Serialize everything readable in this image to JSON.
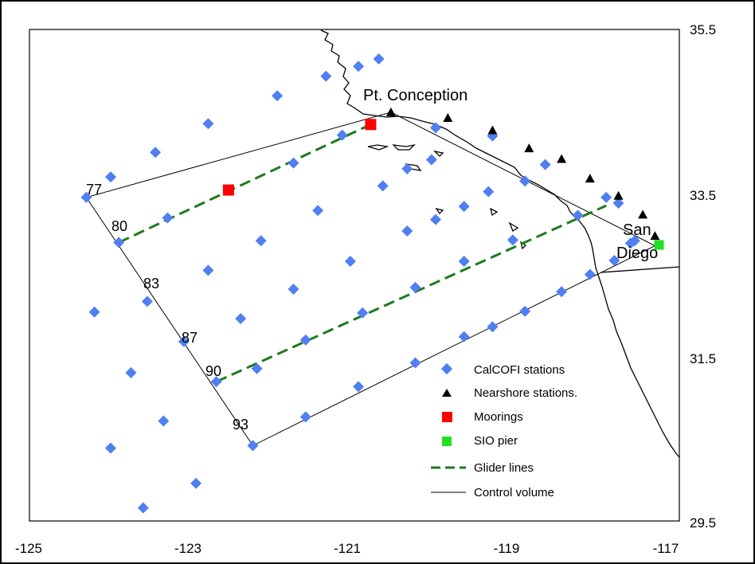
{
  "colors": {
    "calcofi": "#4f7ff0",
    "nearshore": "#000000",
    "mooring": "#ff0000",
    "pier": "#22e022",
    "glider": "#1f7a1f",
    "control": "#000000",
    "coast": "#000000"
  },
  "axes": {
    "x_ticks": [
      "-125",
      "-123",
      "-121",
      "-119",
      "-117"
    ],
    "y_ticks": [
      "35.5",
      "33.5",
      "31.5",
      "29.5"
    ]
  },
  "place_labels": {
    "pt_conception": "Pt. Conception",
    "san": "San",
    "diego": "Diego"
  },
  "line_labels": [
    "77",
    "80",
    "83",
    "87",
    "90",
    "93"
  ],
  "legend": {
    "calcofi": "CalCOFI stations",
    "nearshore": "Nearshore stations.",
    "moorings": "Moorings",
    "pier": "SIO pier",
    "glider": "Glider lines",
    "control": "Control volume"
  },
  "chart_data": {
    "type": "scatter",
    "xlim": [
      -125,
      -117
    ],
    "ylim": [
      29.5,
      35.5
    ],
    "control_volume": [
      [
        -124.3,
        33.45
      ],
      [
        -120.55,
        34.49
      ],
      [
        -117.3,
        32.86
      ],
      [
        -122.25,
        30.42
      ],
      [
        -124.3,
        33.45
      ]
    ],
    "glider_lines": [
      [
        [
          -123.9,
          32.9
        ],
        [
          -120.8,
          34.34
        ]
      ],
      [
        [
          -122.7,
          31.2
        ],
        [
          -117.9,
          33.35
        ]
      ]
    ],
    "moorings": [
      [
        -122.55,
        33.54
      ],
      [
        -120.8,
        34.34
      ]
    ],
    "sio_pier": [
      [
        -117.25,
        32.87
      ]
    ],
    "nearshore_stations": [
      [
        -120.55,
        34.49
      ],
      [
        -119.85,
        34.42
      ],
      [
        -119.3,
        34.27
      ],
      [
        -118.85,
        34.05
      ],
      [
        -118.45,
        33.92
      ],
      [
        -118.1,
        33.68
      ],
      [
        -117.75,
        33.47
      ],
      [
        -117.45,
        33.24
      ],
      [
        -117.3,
        32.98
      ]
    ],
    "calcofi_stations": [
      [
        -120.7,
        35.14
      ],
      [
        -120.95,
        35.05
      ],
      [
        -121.35,
        34.93
      ],
      [
        -121.95,
        34.69
      ],
      [
        -122.8,
        34.35
      ],
      [
        -123.45,
        34.0
      ],
      [
        -124.0,
        33.7
      ],
      [
        -124.3,
        33.45
      ],
      [
        -121.15,
        34.21
      ],
      [
        -121.75,
        33.87
      ],
      [
        -122.55,
        33.54
      ],
      [
        -123.3,
        33.2
      ],
      [
        -123.9,
        32.9
      ],
      [
        -120.0,
        34.3
      ],
      [
        -119.3,
        34.2
      ],
      [
        -118.65,
        33.85
      ],
      [
        -117.9,
        33.45
      ],
      [
        -117.55,
        32.92
      ],
      [
        -120.65,
        33.59
      ],
      [
        -120.35,
        33.8
      ],
      [
        -120.05,
        33.91
      ],
      [
        -119.35,
        33.52
      ],
      [
        -118.9,
        33.65
      ],
      [
        -119.65,
        33.34
      ],
      [
        -120.0,
        33.18
      ],
      [
        -120.35,
        33.04
      ],
      [
        -121.45,
        33.29
      ],
      [
        -122.15,
        32.92
      ],
      [
        -122.8,
        32.56
      ],
      [
        -123.55,
        32.18
      ],
      [
        -121.05,
        32.67
      ],
      [
        -121.75,
        32.33
      ],
      [
        -122.4,
        31.97
      ],
      [
        -123.1,
        31.69
      ],
      [
        -119.05,
        32.93
      ],
      [
        -119.65,
        32.67
      ],
      [
        -120.25,
        32.35
      ],
      [
        -120.9,
        32.04
      ],
      [
        -121.6,
        31.71
      ],
      [
        -122.2,
        31.36
      ],
      [
        -122.7,
        31.2
      ],
      [
        -117.6,
        32.89
      ],
      [
        -117.8,
        32.68
      ],
      [
        -118.1,
        32.51
      ],
      [
        -118.45,
        32.3
      ],
      [
        -118.9,
        32.06
      ],
      [
        -119.3,
        31.87
      ],
      [
        -119.65,
        31.75
      ],
      [
        -120.25,
        31.43
      ],
      [
        -120.95,
        31.14
      ],
      [
        -121.6,
        30.77
      ],
      [
        -122.25,
        30.42
      ],
      [
        -117.75,
        33.38
      ],
      [
        -118.25,
        33.23
      ],
      [
        -124.2,
        32.05
      ],
      [
        -123.75,
        31.31
      ],
      [
        -123.35,
        30.72
      ],
      [
        -124.0,
        30.39
      ],
      [
        -122.95,
        29.96
      ],
      [
        -123.6,
        29.66
      ]
    ],
    "legend_placement": "bottom-right"
  }
}
